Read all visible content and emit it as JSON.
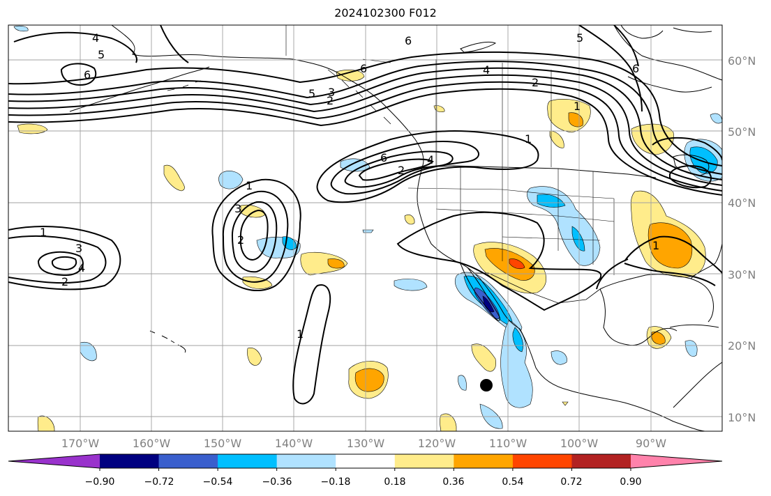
{
  "title": "2024102300 F012",
  "map": {
    "lat_labels": [
      "60°N",
      "50°N",
      "40°N",
      "30°N",
      "20°N",
      "10°N"
    ],
    "lon_labels": [
      "170°W",
      "160°W",
      "150°W",
      "140°W",
      "130°W",
      "120°W",
      "110°W",
      "100°W",
      "90°W"
    ],
    "contour_labels": [
      "4",
      "5",
      "6",
      "6",
      "5",
      "4",
      "2",
      "6",
      "1",
      "6",
      "4",
      "2",
      "6",
      "2",
      "1",
      "3",
      "2",
      "1",
      "4",
      "3",
      "2",
      "1",
      "1",
      "5",
      "1",
      "3"
    ]
  },
  "colorbar": {
    "tick_labels": [
      "−0.90",
      "−0.72",
      "−0.54",
      "−0.36",
      "−0.18",
      "0.18",
      "0.36",
      "0.54",
      "0.72",
      "0.90"
    ],
    "colors": [
      "#9932cc",
      "#000080",
      "#3a5fcd",
      "#00bfff",
      "#b0e2ff",
      "#ffffff",
      "#ffec8b",
      "#ffa500",
      "#ff4500",
      "#b22222",
      "#ff82ab"
    ]
  }
}
